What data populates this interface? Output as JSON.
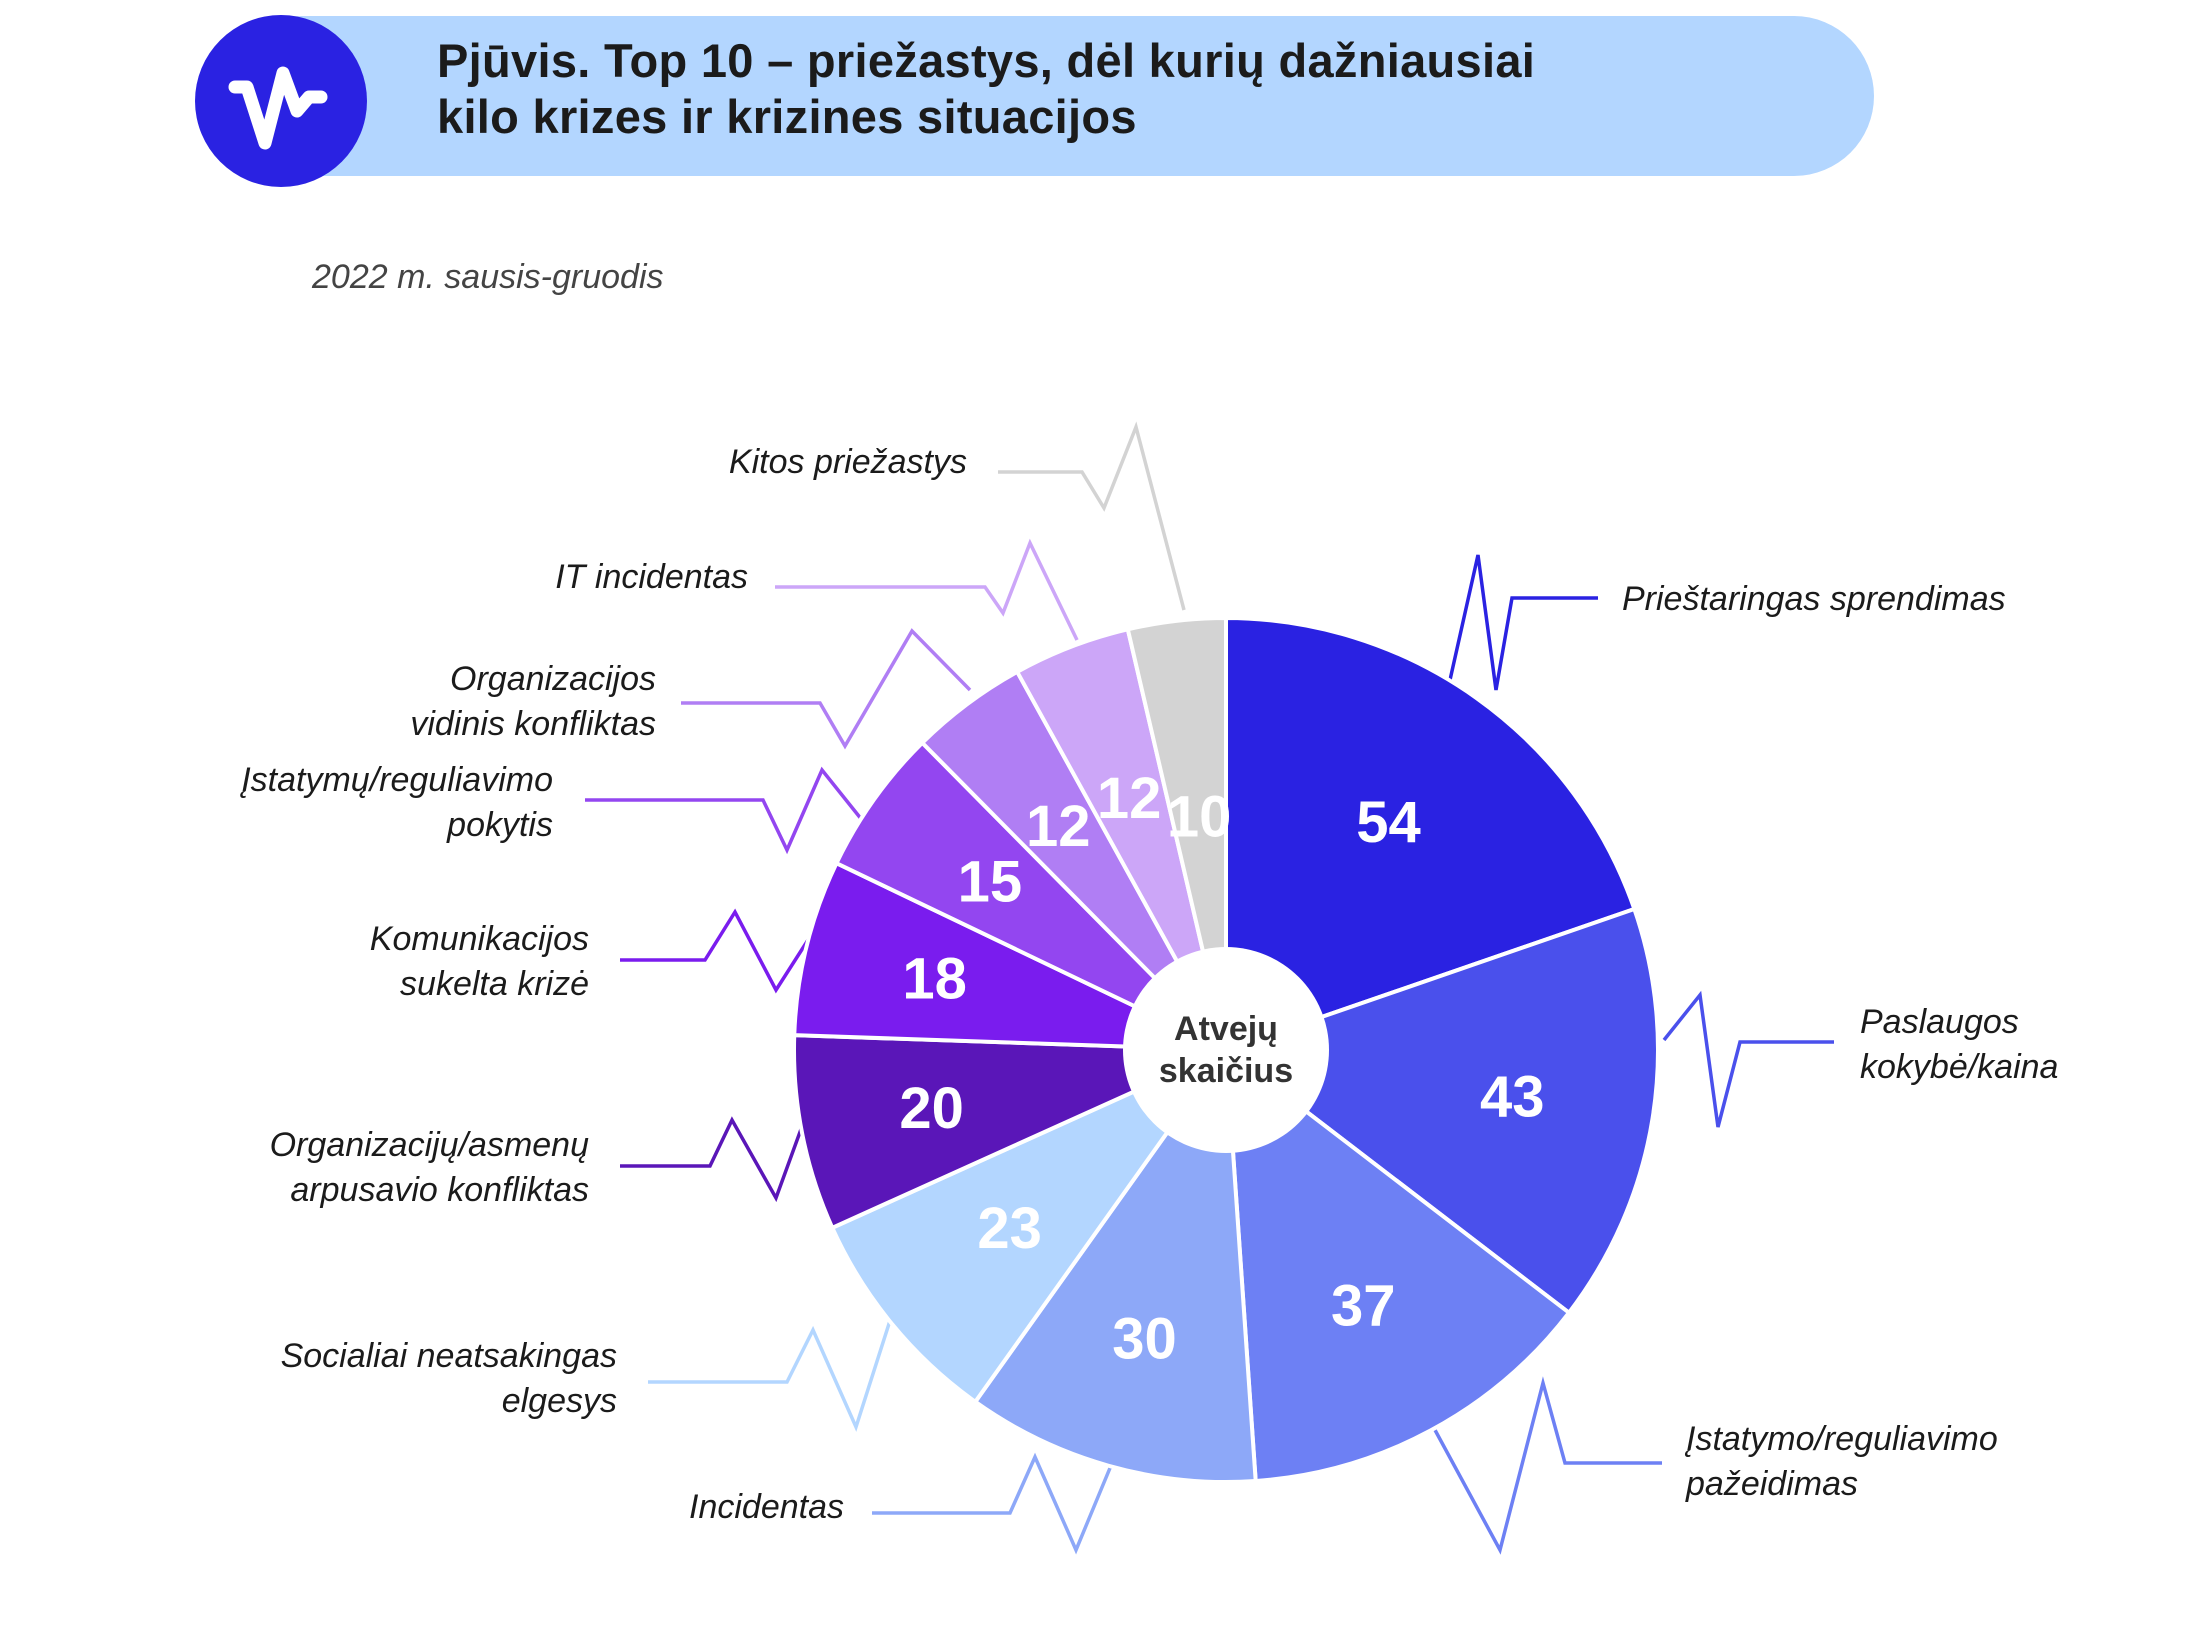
{
  "header": {
    "title_line1": "Pjūvis. Top 10 – priežastys, dėl kurių dažniausiai",
    "title_line2": "kilo krizes ir krizines situacijos",
    "subtitle": "2022 m. sausis-gruodis"
  },
  "logo": {
    "icon": "pulse-wave-icon",
    "color": "#2a22e2"
  },
  "colors": {
    "header_background": "#b3d6ff"
  },
  "chart_data": {
    "type": "pie",
    "center_label": [
      "Atvejų",
      "skaičius"
    ],
    "slices": [
      {
        "label": [
          "Prieštaringas sprendimas"
        ],
        "value": 54,
        "color": "#2a22e2",
        "value_color": "#ffffff"
      },
      {
        "label": [
          "Paslaugos",
          "kokybė/kaina"
        ],
        "value": 43,
        "color": "#4a50ec",
        "value_color": "#ffffff"
      },
      {
        "label": [
          "Įstatymo/reguliavimo",
          "pažeidimas"
        ],
        "value": 37,
        "color": "#6d80f4",
        "value_color": "#ffffff"
      },
      {
        "label": [
          "Incidentas"
        ],
        "value": 30,
        "color": "#8da8f8",
        "value_color": "#ffffff"
      },
      {
        "label": [
          "Socialiai neatsakingas",
          "elgesys"
        ],
        "value": 23,
        "color": "#b3d6ff",
        "value_color": "#ffffff"
      },
      {
        "label": [
          "Organizacijų/asmenų",
          "arpusavio konfliktas"
        ],
        "value": 20,
        "color": "#5a16b8",
        "value_color": "#ffffff"
      },
      {
        "label": [
          "Komunikacijos",
          "sukelta krizė"
        ],
        "value": 18,
        "color": "#7a1cee",
        "value_color": "#ffffff"
      },
      {
        "label": [
          "Įstatymų/reguliavimo",
          "pokytis"
        ],
        "value": 15,
        "color": "#9346f0",
        "value_color": "#ffffff"
      },
      {
        "label": [
          "Organizacijos",
          "vidinis konfliktas"
        ],
        "value": 12,
        "color": "#b07ef4",
        "value_color": "#ffffff"
      },
      {
        "label": [
          "IT incidentas"
        ],
        "value": 12,
        "color": "#cca6f8",
        "value_color": "#ffffff"
      },
      {
        "label": [
          "Kitos priežastys"
        ],
        "value": 10,
        "color": "#d3d3d3",
        "value_color": "#ffffff"
      }
    ]
  }
}
